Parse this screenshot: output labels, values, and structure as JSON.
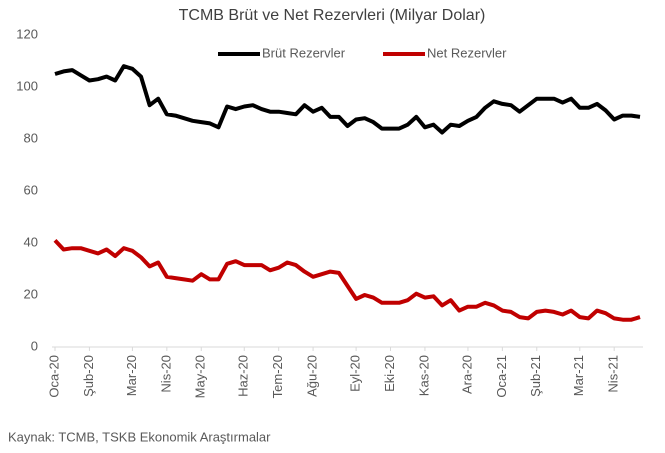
{
  "chart_data": {
    "type": "line",
    "title": "TCMB Brüt ve Net Rezervleri (Milyar Dolar)",
    "source": "Kaynak: TCMB, TSKB Ekonomik Araştırmalar",
    "categories": [
      "Oca-20",
      null,
      null,
      null,
      "Şub-20",
      null,
      null,
      null,
      null,
      "Mar-20",
      null,
      null,
      null,
      "Nis-20",
      null,
      null,
      null,
      "May-20",
      null,
      null,
      null,
      null,
      "Haz-20",
      null,
      null,
      null,
      "Tem-20",
      null,
      null,
      null,
      "Ağu-20",
      null,
      null,
      null,
      null,
      "Eyl-20",
      null,
      null,
      null,
      "Eki-20",
      null,
      null,
      null,
      "Kas-20",
      null,
      null,
      null,
      null,
      "Ara-20",
      null,
      null,
      null,
      "Oca-21",
      null,
      null,
      null,
      "Şub-21",
      null,
      null,
      null,
      null,
      "Mar-21",
      null,
      null,
      null,
      "Nis-21",
      null,
      null,
      null
    ],
    "series": [
      {
        "name": "Brüt Rezervler",
        "color": "#000000",
        "values": [
          105,
          106,
          106.5,
          104.5,
          102.5,
          103,
          104,
          102.5,
          108,
          107,
          104,
          93,
          95.5,
          89.5,
          89,
          88,
          87,
          86.5,
          86,
          84.5,
          92.5,
          91.5,
          92.5,
          93,
          91.5,
          90.5,
          90.5,
          90,
          89.5,
          93,
          90.5,
          92,
          88.5,
          88.5,
          85,
          87.5,
          88,
          86.5,
          84,
          84,
          84,
          85.5,
          88.5,
          84.5,
          85.5,
          82.5,
          85.5,
          85,
          87,
          88.5,
          92,
          94.5,
          93.5,
          93,
          90.5,
          93,
          95.5,
          95.5,
          95.5,
          94,
          95.5,
          92,
          92,
          93.5,
          91,
          87.5,
          89,
          89,
          88.5
        ]
      },
      {
        "name": "Net Rezervler",
        "color": "#c00000",
        "values": [
          41,
          37.5,
          38,
          38,
          37,
          36,
          37.5,
          35,
          38,
          37,
          34.5,
          31,
          32.5,
          27,
          26.5,
          26,
          25.5,
          28,
          26,
          26,
          32,
          33,
          31.5,
          31.5,
          31.5,
          29.5,
          30.5,
          32.5,
          31.5,
          29,
          27,
          28,
          29,
          28.5,
          23.5,
          18.5,
          20,
          19,
          17,
          17,
          17,
          18,
          20.5,
          19,
          19.5,
          16,
          18,
          14,
          15.5,
          15.5,
          17,
          16,
          14,
          13.5,
          11.5,
          11,
          13.5,
          14,
          13.5,
          12.5,
          14,
          11.5,
          11,
          14,
          13,
          11,
          10.5,
          10.5,
          11.5
        ]
      }
    ],
    "ylim": [
      0,
      120
    ],
    "yticks": [
      0,
      20,
      40,
      60,
      80,
      100,
      120
    ],
    "grid": false,
    "legend": "top"
  }
}
